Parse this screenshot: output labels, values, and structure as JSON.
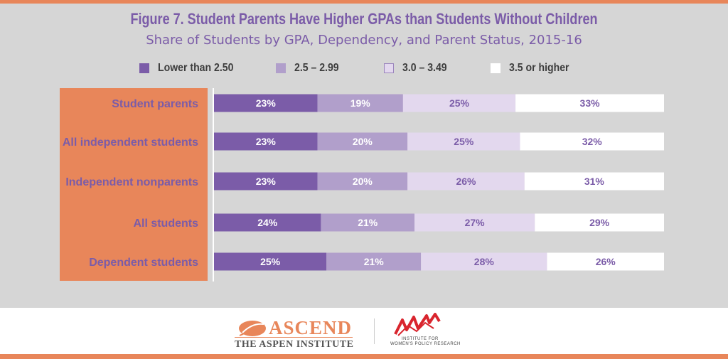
{
  "chart_data": {
    "type": "bar",
    "orientation": "horizontal",
    "stacked": true,
    "title": "Figure 7. Student Parents Have Higher GPAs than Students Without Children",
    "subtitle": "Share of Students by GPA, Dependency, and Parent Status, 2015-16",
    "categories": [
      "Student parents",
      "All independent students",
      "Independent nonparents",
      "All students",
      "Dependent students"
    ],
    "series": [
      {
        "name": "Lower than 2.50",
        "values": [
          23,
          23,
          23,
          24,
          25
        ],
        "labels": [
          "23%",
          "23%",
          "23%",
          "24%",
          "25%"
        ],
        "color": "#7b5ca8",
        "label_color": "#ffffff"
      },
      {
        "name": "2.5 – 2.99",
        "values": [
          19,
          20,
          20,
          21,
          21
        ],
        "labels": [
          "19%",
          "20%",
          "20%",
          "21%",
          "21%"
        ],
        "color": "#b19fcb",
        "label_color": "#ffffff"
      },
      {
        "name": "3.0 – 3.49",
        "values": [
          25,
          25,
          26,
          27,
          28
        ],
        "labels": [
          "25%",
          "25%",
          "26%",
          "27%",
          "28%"
        ],
        "color": "#e3d8ee",
        "label_color": "#7b5ca8"
      },
      {
        "name": "3.5 or higher",
        "values": [
          33,
          32,
          31,
          29,
          26
        ],
        "labels": [
          "33%",
          "32%",
          "31%",
          "29%",
          "26%"
        ],
        "color": "#ffffff",
        "label_color": "#7b5ca8"
      }
    ],
    "xlim": [
      0,
      100
    ],
    "legend_position": "top",
    "grid": false
  },
  "footer": {
    "ascend_logo_text": "ASCEND",
    "aspen_text": "THE ASPEN INSTITUTE",
    "iwpr_line1": "INSTITUTE FOR",
    "iwpr_line2": "WOMEN'S POLICY RESEARCH"
  },
  "colors": {
    "accent": "#e8865a",
    "panel": "#d6d6d6",
    "title": "#7b5ca8",
    "iwpr_red": "#d9252e"
  }
}
